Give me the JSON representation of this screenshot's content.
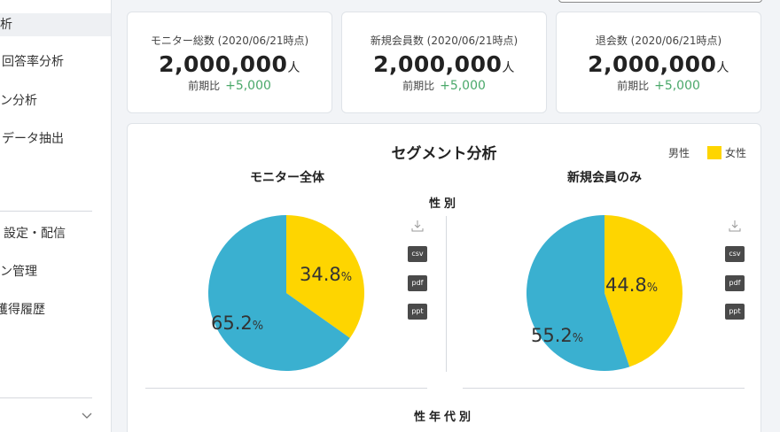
{
  "sidebar": {
    "items": [
      {
        "label": "析",
        "active": true
      },
      {
        "label": "回答率分析"
      },
      {
        "label": "ン分析"
      },
      {
        "label": "データ抽出"
      },
      {
        "label": "設定・配信"
      },
      {
        "label": "ン管理"
      },
      {
        "label": "獲得履歴"
      }
    ],
    "collapse_icon": "chevron-down-icon"
  },
  "stats": [
    {
      "label": "モニター総数 (2020/06/21時点)",
      "value": "2,000,000",
      "unit": "人",
      "delta_label": "前期比",
      "delta_value": "+5,000"
    },
    {
      "label": "新規会員数 (2020/06/21時点)",
      "value": "2,000,000",
      "unit": "人",
      "delta_label": "前期比",
      "delta_value": "+5,000"
    },
    {
      "label": "退会数 (2020/06/21時点)",
      "value": "2,000,000",
      "unit": "人",
      "delta_label": "前期比",
      "delta_value": "+5,000"
    }
  ],
  "segment": {
    "title": "セグメント分析",
    "legend": [
      {
        "label": "男性",
        "color": "#3ab0d0"
      },
      {
        "label": "女性",
        "color": "#fed500"
      }
    ],
    "gender_heading": "性別",
    "age_heading": "性年代別",
    "columns": [
      {
        "title": "モニター全体"
      },
      {
        "title": "新規会員のみ"
      }
    ],
    "download": {
      "icon": "download-icon",
      "csv": "csv",
      "pdf": "pdf",
      "ppt": "ppt"
    }
  },
  "chart_data": [
    {
      "type": "pie",
      "title": "モニター全体",
      "categories": [
        "男性",
        "女性"
      ],
      "values": [
        65.2,
        34.8
      ],
      "labels": [
        "65.2",
        "34.8"
      ],
      "unit": "%",
      "colors": [
        "#3ab0d0",
        "#fed500"
      ]
    },
    {
      "type": "pie",
      "title": "新規会員のみ",
      "categories": [
        "男性",
        "女性"
      ],
      "values": [
        55.2,
        44.8
      ],
      "labels": [
        "55.2",
        "44.8"
      ],
      "unit": "%",
      "colors": [
        "#3ab0d0",
        "#fed500"
      ]
    }
  ]
}
